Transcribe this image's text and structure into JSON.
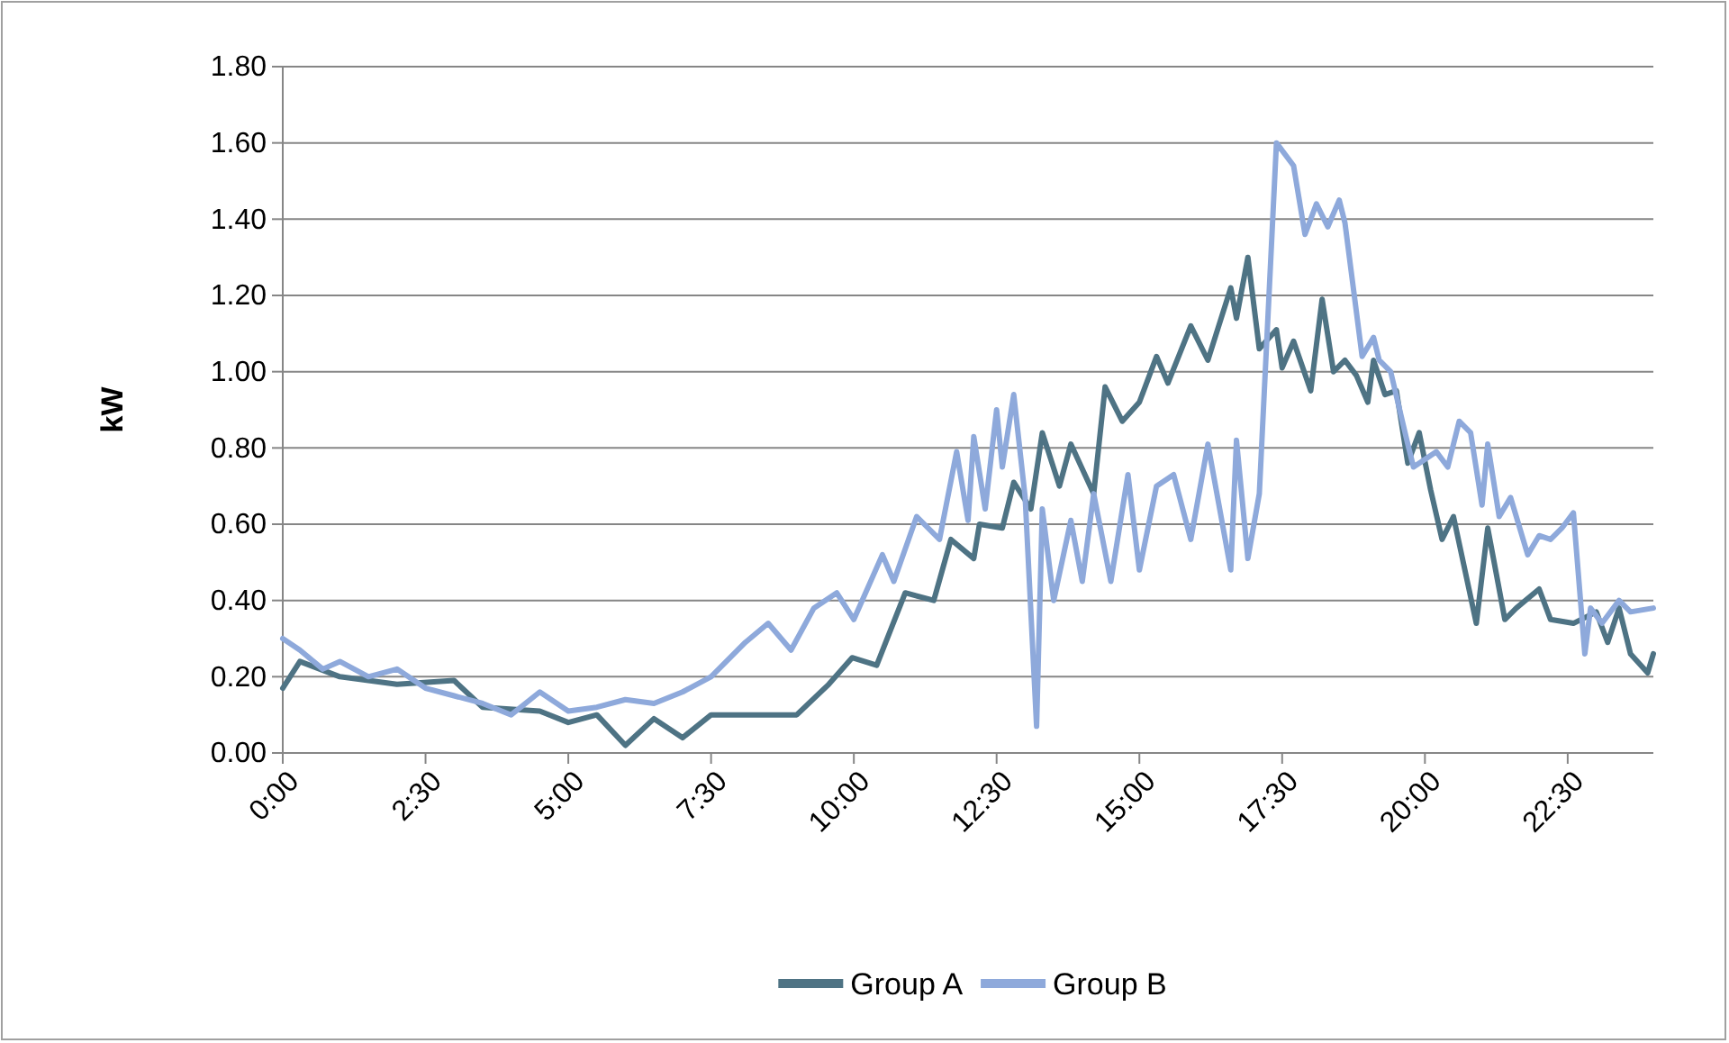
{
  "chart_data": {
    "type": "line",
    "ylabel": "kW",
    "xlim": [
      0,
      24
    ],
    "xticks": [
      {
        "value": 0,
        "label": "0:00"
      },
      {
        "value": 2.5,
        "label": "2:30"
      },
      {
        "value": 5,
        "label": "5:00"
      },
      {
        "value": 7.5,
        "label": "7:30"
      },
      {
        "value": 10,
        "label": "10:00"
      },
      {
        "value": 12.5,
        "label": "12:30"
      },
      {
        "value": 15,
        "label": "15:00"
      },
      {
        "value": 17.5,
        "label": "17:30"
      },
      {
        "value": 20,
        "label": "20:00"
      },
      {
        "value": 22.5,
        "label": "22:30"
      }
    ],
    "ylim": [
      0,
      1.8
    ],
    "yticks": [
      {
        "value": 0,
        "label": "0.00"
      },
      {
        "value": 0.2,
        "label": "0.20"
      },
      {
        "value": 0.4,
        "label": "0.40"
      },
      {
        "value": 0.6,
        "label": "0.60"
      },
      {
        "value": 0.8,
        "label": "0.80"
      },
      {
        "value": 1,
        "label": "1.00"
      },
      {
        "value": 1.2,
        "label": "1.20"
      },
      {
        "value": 1.4,
        "label": "1.40"
      },
      {
        "value": 1.6,
        "label": "1.60"
      },
      {
        "value": 1.8,
        "label": "1.80"
      }
    ],
    "grid": "y",
    "legend": "bottom",
    "marker": "none",
    "line_style": "solid",
    "series": [
      {
        "name": "Group A",
        "color": "#4e7384",
        "x": [
          0,
          0.3,
          1,
          2,
          3,
          3.5,
          4.5,
          5,
          5.5,
          6,
          6.5,
          7,
          7.5,
          8.2,
          9,
          9.56,
          9.97,
          10.4,
          10.9,
          11.4,
          11.7,
          12.1,
          12.2,
          12.6,
          12.8,
          13.1,
          13.3,
          13.6,
          13.8,
          14.2,
          14.4,
          14.7,
          15,
          15.3,
          15.5,
          15.9,
          16.2,
          16.6,
          16.7,
          16.9,
          17.1,
          17.4,
          17.5,
          17.7,
          18,
          18.2,
          18.4,
          18.6,
          18.8,
          19,
          19.1,
          19.3,
          19.5,
          19.7,
          19.9,
          20.1,
          20.3,
          20.5,
          20.9,
          21.1,
          21.4,
          21.6,
          22,
          22.2,
          22.6,
          23,
          23.2,
          23.4,
          23.6,
          23.9,
          24
        ],
        "values": [
          0.17,
          0.24,
          0.2,
          0.18,
          0.19,
          0.12,
          0.11,
          0.08,
          0.1,
          0.02,
          0.09,
          0.04,
          0.1,
          0.1,
          0.1,
          0.18,
          0.25,
          0.23,
          0.42,
          0.4,
          0.56,
          0.51,
          0.6,
          0.59,
          0.71,
          0.64,
          0.84,
          0.7,
          0.81,
          0.68,
          0.96,
          0.87,
          0.92,
          1.04,
          0.97,
          1.12,
          1.03,
          1.22,
          1.14,
          1.3,
          1.06,
          1.11,
          1.01,
          1.08,
          0.95,
          1.19,
          1,
          1.03,
          0.99,
          0.92,
          1.03,
          0.94,
          0.95,
          0.76,
          0.84,
          0.69,
          0.56,
          0.62,
          0.34,
          0.59,
          0.35,
          0.38,
          0.43,
          0.35,
          0.34,
          0.37,
          0.29,
          0.38,
          0.26,
          0.21,
          0.26
        ]
      },
      {
        "name": "Group B",
        "color": "#8ea9db",
        "x": [
          0,
          0.3,
          0.7,
          1,
          1.5,
          2,
          2.5,
          3,
          3.5,
          4,
          4.5,
          5,
          5.5,
          6,
          6.5,
          7,
          7.5,
          8.1,
          8.5,
          8.9,
          9.3,
          9.7,
          10,
          10.5,
          10.7,
          11.1,
          11.5,
          11.8,
          12,
          12.1,
          12.3,
          12.5,
          12.6,
          12.8,
          13,
          13.2,
          13.3,
          13.5,
          13.8,
          14,
          14.2,
          14.5,
          14.8,
          15,
          15.3,
          15.6,
          15.9,
          16.2,
          16.6,
          16.7,
          16.9,
          17.1,
          17.4,
          17.7,
          17.9,
          18.1,
          18.3,
          18.5,
          18.6,
          18.9,
          19.1,
          19.2,
          19.4,
          19.7,
          19.8,
          20.2,
          20.4,
          20.6,
          20.8,
          21,
          21.1,
          21.3,
          21.5,
          21.8,
          22,
          22.2,
          22.4,
          22.6,
          22.8,
          22.9,
          23.1,
          23.4,
          23.6,
          24
        ],
        "values": [
          0.3,
          0.27,
          0.22,
          0.24,
          0.2,
          0.22,
          0.17,
          0.15,
          0.13,
          0.1,
          0.16,
          0.11,
          0.12,
          0.14,
          0.13,
          0.16,
          0.2,
          0.29,
          0.34,
          0.27,
          0.38,
          0.42,
          0.35,
          0.52,
          0.45,
          0.62,
          0.56,
          0.79,
          0.61,
          0.83,
          0.64,
          0.9,
          0.75,
          0.94,
          0.67,
          0.07,
          0.64,
          0.4,
          0.61,
          0.45,
          0.68,
          0.45,
          0.73,
          0.48,
          0.7,
          0.73,
          0.56,
          0.81,
          0.48,
          0.82,
          0.51,
          0.68,
          1.6,
          1.54,
          1.36,
          1.44,
          1.38,
          1.45,
          1.39,
          1.04,
          1.09,
          1.03,
          1,
          0.81,
          0.75,
          0.79,
          0.75,
          0.87,
          0.84,
          0.65,
          0.81,
          0.62,
          0.67,
          0.52,
          0.57,
          0.56,
          0.59,
          0.63,
          0.26,
          0.38,
          0.34,
          0.4,
          0.37,
          0.38
        ]
      }
    ]
  }
}
